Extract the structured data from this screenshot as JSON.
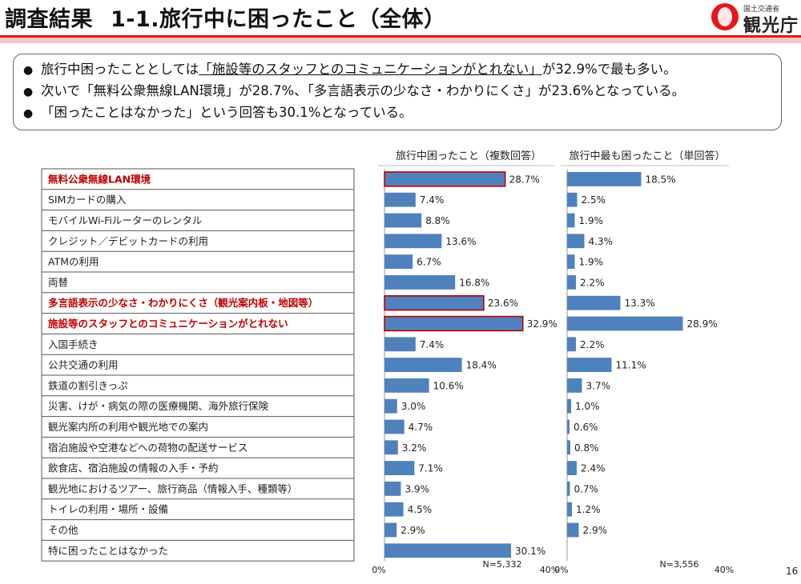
{
  "header": {
    "title_prefix": "調査結果",
    "title_main": "1-1.旅行中に困ったこと（全体）",
    "logo_ministry": "国土交通省",
    "logo_name": "観光庁"
  },
  "summary": {
    "line1": {
      "before": "旅行中困ったこととしては",
      "highlight": "「施設等のスタッフとのコミュニケーションがとれない」",
      "after": "が32.9%で最も多い。"
    },
    "line2": {
      "text": "次いで「無料公衆無線LAN環境」が28.7%、「多言語表示の少なさ・わかりにくさ」が23.6%となっている。"
    },
    "line3": {
      "text": "「困ったことはなかった」という回答も30.1%となっている。"
    }
  },
  "chart_data": [
    {
      "type": "bar",
      "orientation": "horizontal",
      "title": "旅行中困ったこと（複数回答）",
      "n_label": "N=5,332",
      "xlim": [
        0,
        40
      ],
      "axis_labels": [
        "0%",
        "40%"
      ],
      "highlight_color": "#c00000",
      "bar_color": "#4f81bd",
      "categories": [
        "無料公衆無線LAN環境",
        "SIMカードの購入",
        "モバイルWi-Fiルーターのレンタル",
        "クレジット／デビットカードの利用",
        "ATMの利用",
        "両替",
        "多言語表示の少なさ・わかりにくさ（観光案内板・地図等）",
        "施設等のスタッフとのコミュニケーションがとれない",
        "入国手続き",
        "公共交通の利用",
        "鉄道の割引きっぷ",
        "災害、けが・病気の際の医療機関、海外旅行保険",
        "観光案内所の利用や観光地での案内",
        "宿泊施設や空港などへの荷物の配送サービス",
        "飲食店、宿泊施設の情報の入手・予約",
        "観光地におけるツアー、旅行商品（情報入手、種類等）",
        "トイレの利用・場所・設備",
        "その他",
        "特に困ったことはなかった"
      ],
      "highlighted": [
        true,
        false,
        false,
        false,
        false,
        false,
        true,
        true,
        false,
        false,
        false,
        false,
        false,
        false,
        false,
        false,
        false,
        false,
        false
      ],
      "values": [
        28.7,
        7.4,
        8.8,
        13.6,
        6.7,
        16.8,
        23.6,
        32.9,
        7.4,
        18.4,
        10.6,
        3.0,
        4.7,
        3.2,
        7.1,
        3.9,
        4.5,
        2.9,
        30.1
      ],
      "labels": [
        "28.7%",
        "7.4%",
        "8.8%",
        "13.6%",
        "6.7%",
        "16.8%",
        "23.6%",
        "32.9%",
        "7.4%",
        "18.4%",
        "10.6%",
        "3.0%",
        "4.7%",
        "3.2%",
        "7.1%",
        "3.9%",
        "4.5%",
        "2.9%",
        "30.1%"
      ]
    },
    {
      "type": "bar",
      "orientation": "horizontal",
      "title": "旅行中最も困ったこと（単回答）",
      "n_label": "N=3,556",
      "xlim": [
        0,
        40
      ],
      "axis_labels": [
        "0%",
        "40%"
      ],
      "bar_color": "#4f81bd",
      "values": [
        18.5,
        2.5,
        1.9,
        4.3,
        1.9,
        2.2,
        13.3,
        28.9,
        2.2,
        11.1,
        3.7,
        1.0,
        0.6,
        0.8,
        2.4,
        0.7,
        1.2,
        2.9,
        null
      ],
      "labels": [
        "18.5%",
        "2.5%",
        "1.9%",
        "4.3%",
        "1.9%",
        "2.2%",
        "13.3%",
        "28.9%",
        "2.2%",
        "11.1%",
        "3.7%",
        "1.0%",
        "0.6%",
        "0.8%",
        "2.4%",
        "0.7%",
        "1.2%",
        "2.9%",
        ""
      ]
    }
  ],
  "footer": {
    "page_number": "16"
  }
}
